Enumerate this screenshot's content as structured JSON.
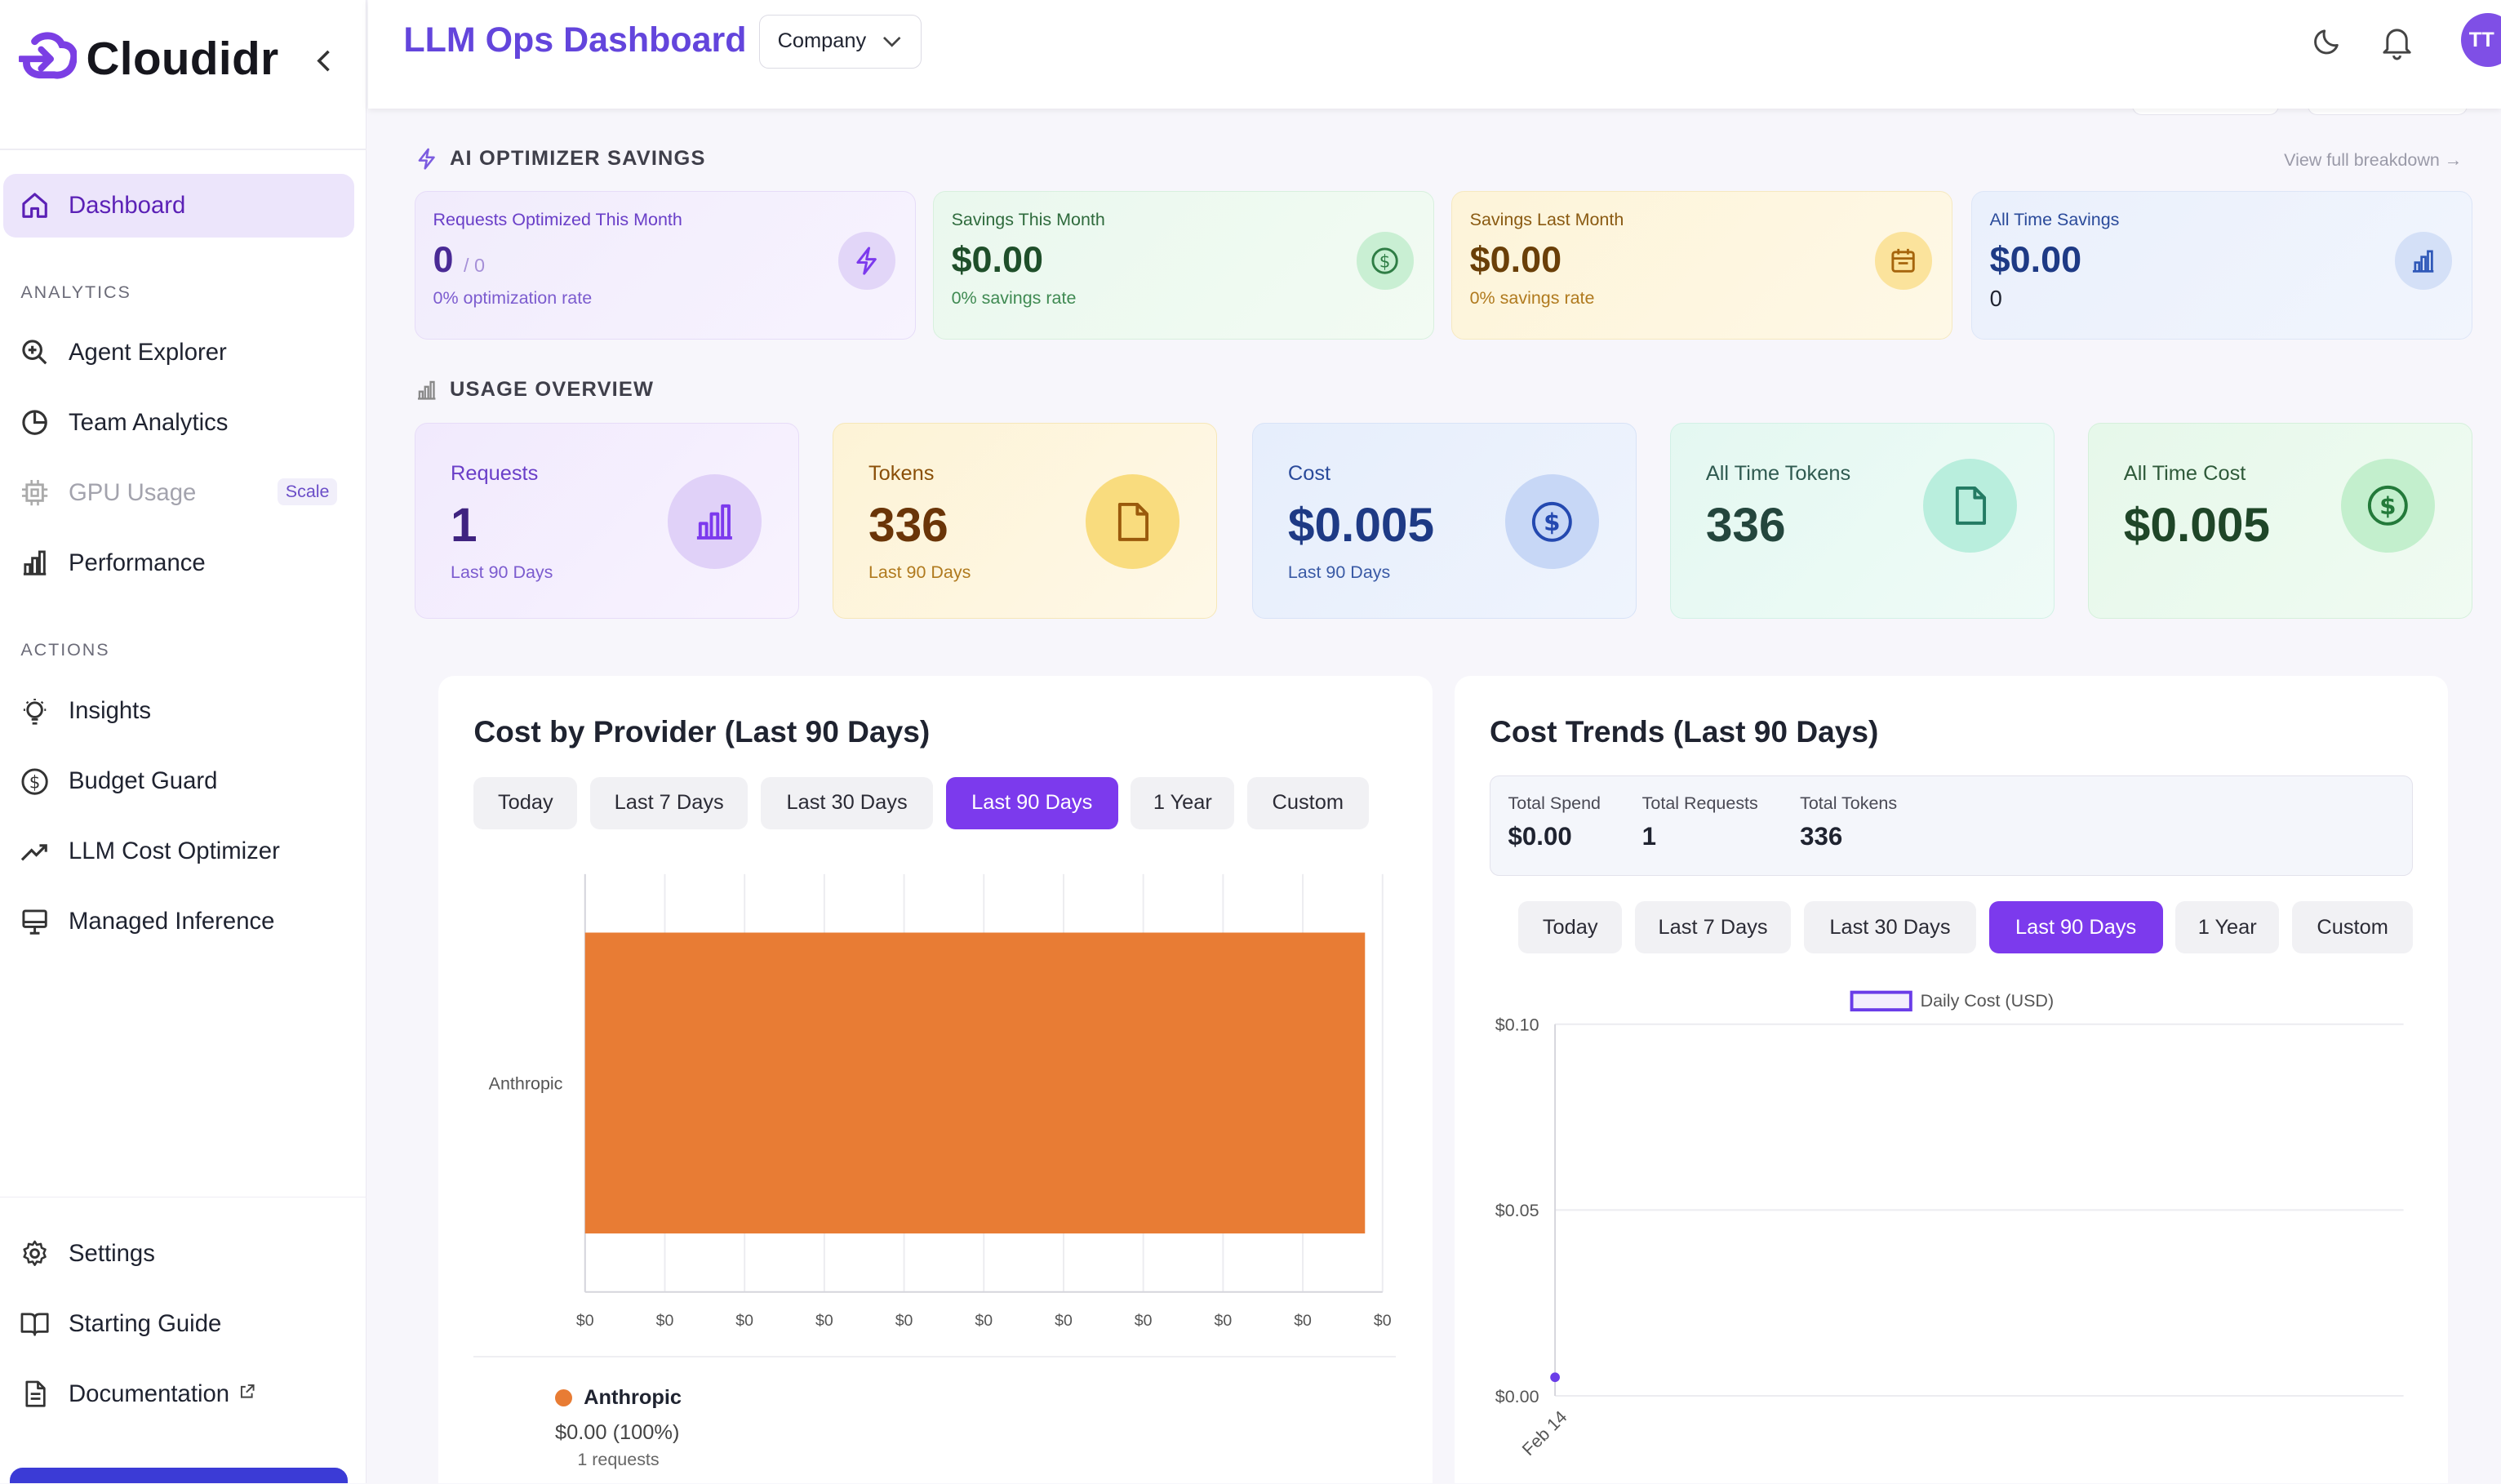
{
  "brand": {
    "name": "Cloudidr"
  },
  "sidebar": {
    "items": [
      {
        "label": "Dashboard"
      },
      {
        "label": "Agent Explorer"
      },
      {
        "label": "Team Analytics"
      },
      {
        "label": "GPU Usage",
        "badge": "Scale"
      },
      {
        "label": "Performance"
      },
      {
        "label": "Insights"
      },
      {
        "label": "Budget Guard"
      },
      {
        "label": "LLM Cost Optimizer"
      },
      {
        "label": "Managed Inference"
      },
      {
        "label": "Settings"
      },
      {
        "label": "Starting Guide"
      },
      {
        "label": "Documentation"
      }
    ],
    "sections": {
      "analytics": "ANALYTICS",
      "actions": "ACTIONS"
    }
  },
  "header": {
    "title": "LLM Ops Dashboard",
    "company_select": "Company",
    "avatar_initials": "TT"
  },
  "optimizer": {
    "title": "AI OPTIMIZER SAVINGS",
    "view_link": "View full breakdown →",
    "cards": [
      {
        "label": "Requests Optimized This Month",
        "value": "0",
        "value_suffix": "/ 0",
        "sub": "0% optimization rate"
      },
      {
        "label": "Savings This Month",
        "value": "$0.00",
        "sub": "0% savings rate"
      },
      {
        "label": "Savings Last Month",
        "value": "$0.00",
        "sub": "0% savings rate"
      },
      {
        "label": "All Time Savings",
        "value": "$0.00",
        "sub": "0"
      }
    ]
  },
  "usage": {
    "title": "USAGE OVERVIEW",
    "cards": [
      {
        "label": "Requests",
        "value": "1",
        "sub": "Last 90 Days"
      },
      {
        "label": "Tokens",
        "value": "336",
        "sub": "Last 90 Days"
      },
      {
        "label": "Cost",
        "value": "$0.005",
        "sub": "Last 90 Days"
      },
      {
        "label": "All Time Tokens",
        "value": "336"
      },
      {
        "label": "All Time Cost",
        "value": "$0.005"
      }
    ]
  },
  "ranges": [
    "Today",
    "Last 7 Days",
    "Last 30 Days",
    "Last 90 Days",
    "1 Year",
    "Custom"
  ],
  "provider_panel": {
    "title": "Cost by Provider (Last 90 Days)",
    "legend": {
      "name": "Anthropic",
      "amount": "$0.00 (100%)",
      "requests": "1 requests"
    }
  },
  "trends_panel": {
    "title": "Cost Trends (Last 90 Days)",
    "stats": [
      {
        "label": "Total Spend",
        "value": "$0.00"
      },
      {
        "label": "Total Requests",
        "value": "1"
      },
      {
        "label": "Total Tokens",
        "value": "336"
      }
    ]
  },
  "chart_data": [
    {
      "type": "bar",
      "orientation": "horizontal",
      "categories": [
        "Anthropic"
      ],
      "values": [
        0.005
      ],
      "x_tick_labels": [
        "$0",
        "$0",
        "$0",
        "$0",
        "$0",
        "$0",
        "$0",
        "$0",
        "$0",
        "$0",
        "$0"
      ],
      "colors": [
        "#e87c34"
      ],
      "grid": true
    },
    {
      "type": "line",
      "legend": "Daily Cost (USD)",
      "x": [
        "Feb 14"
      ],
      "values": [
        0.005
      ],
      "y_tick_labels": [
        "$0.10",
        "$0.05",
        "$0.00"
      ],
      "ylim": [
        0,
        0.1
      ],
      "color": "#6a3de8",
      "grid": true,
      "legend_position": "top-center"
    }
  ]
}
